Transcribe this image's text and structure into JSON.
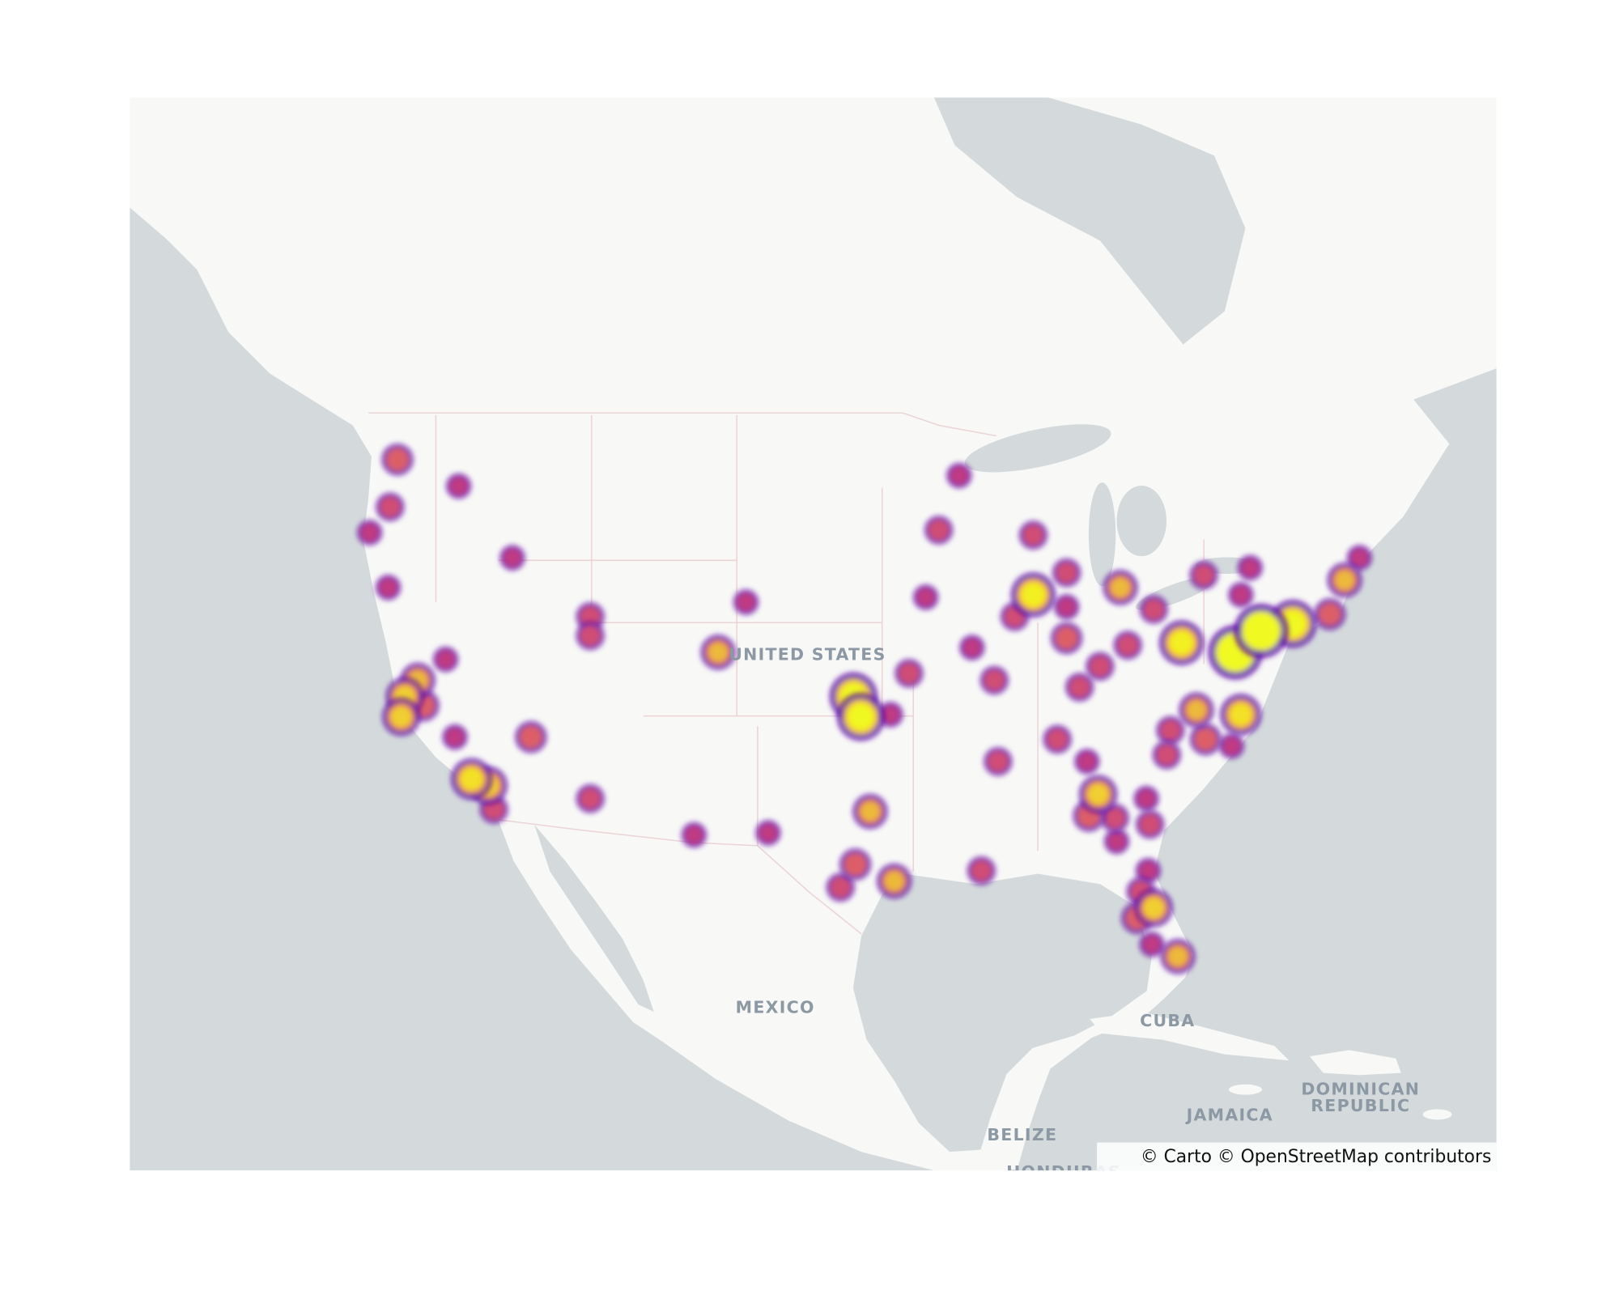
{
  "chart_data": {
    "type": "densitymap",
    "colorscale": [
      "#5c01a6",
      "#9c179e",
      "#cc4778",
      "#ed7953",
      "#fdb42f",
      "#f0f921"
    ],
    "lat": [
      47.6,
      46.6,
      45.8,
      44.8,
      43.8,
      42.6,
      39.6,
      38.0,
      38.7,
      37.1,
      37.6,
      36.2,
      36.2,
      34.3,
      34.0,
      32.9,
      33.4,
      41.4,
      40.6,
      39.9,
      42.0,
      31.7,
      31.8,
      38.0,
      37.1,
      37.2,
      39.0,
      32.8,
      30.3,
      29.2,
      29.5,
      42.2,
      47.0,
      44.9,
      44.7,
      42.3,
      41.4,
      40.1,
      38.7,
      35.1,
      30.0,
      36.1,
      40.5,
      38.4,
      39.3,
      43.2,
      41.8,
      42.6,
      41.7,
      40.2,
      40.3,
      43.1,
      43.4,
      42.3,
      39.9,
      40.8,
      41.1,
      41.5,
      42.9,
      43.8,
      37.2,
      37.4,
      36.5,
      36.1,
      35.8,
      35.4,
      35.1,
      33.6,
      32.6,
      32.5,
      31.4,
      33.4,
      32.2,
      30.0,
      29.0,
      28.2,
      27.7,
      26.4,
      25.8
    ],
    "lon": [
      -122.3,
      -119.0,
      -122.7,
      -123.8,
      -116.1,
      -122.8,
      -119.7,
      -121.9,
      -121.2,
      -122.1,
      -120.9,
      -119.2,
      -115.1,
      -118.3,
      -117.4,
      -117.1,
      -111.9,
      -111.9,
      -111.9,
      -105.0,
      -103.5,
      -106.3,
      -102.3,
      -97.7,
      -97.3,
      -95.7,
      -94.7,
      -96.8,
      -97.6,
      -98.4,
      -95.5,
      -93.8,
      -92.0,
      -93.1,
      -88.0,
      -88.0,
      -89.0,
      -91.3,
      -90.1,
      -89.9,
      -90.8,
      -86.7,
      -86.2,
      -85.5,
      -84.4,
      -86.2,
      -86.2,
      -83.3,
      -81.5,
      -82.9,
      -80.0,
      -78.8,
      -76.3,
      -76.8,
      -77.1,
      -75.7,
      -74.0,
      -72.0,
      -71.2,
      -70.4,
      -76.8,
      -79.2,
      -80.6,
      -78.7,
      -77.3,
      -80.8,
      -85.1,
      -84.5,
      -85.0,
      -83.6,
      -83.5,
      -81.9,
      -81.7,
      -81.8,
      -82.2,
      -81.5,
      -82.4,
      -81.6,
      -80.2
    ],
    "z": [
      3,
      1,
      2,
      1,
      1,
      1,
      1,
      5,
      4,
      5,
      3,
      1,
      3,
      6,
      5,
      2,
      2,
      2,
      2,
      4,
      1,
      1,
      1,
      8,
      8,
      1,
      2,
      4,
      3,
      2,
      4,
      1,
      1,
      2,
      2,
      7,
      2,
      1,
      2,
      2,
      2,
      2,
      3,
      2,
      2,
      2,
      1,
      4,
      2,
      2,
      7,
      2,
      1,
      1,
      10,
      10,
      8,
      3,
      4,
      1,
      6,
      4,
      2,
      3,
      1,
      2,
      1,
      5,
      3,
      2,
      1,
      1,
      2,
      1,
      2,
      5,
      3,
      1,
      4
    ],
    "place_labels": [
      "UNITED STATES",
      "MEXICO",
      "CUBA",
      "JAMAICA",
      "DOMINICAN",
      "REPUBLIC",
      "BELIZE",
      "HONDURAS"
    ],
    "attribution": "© Carto © OpenStreetMap contributors"
  }
}
